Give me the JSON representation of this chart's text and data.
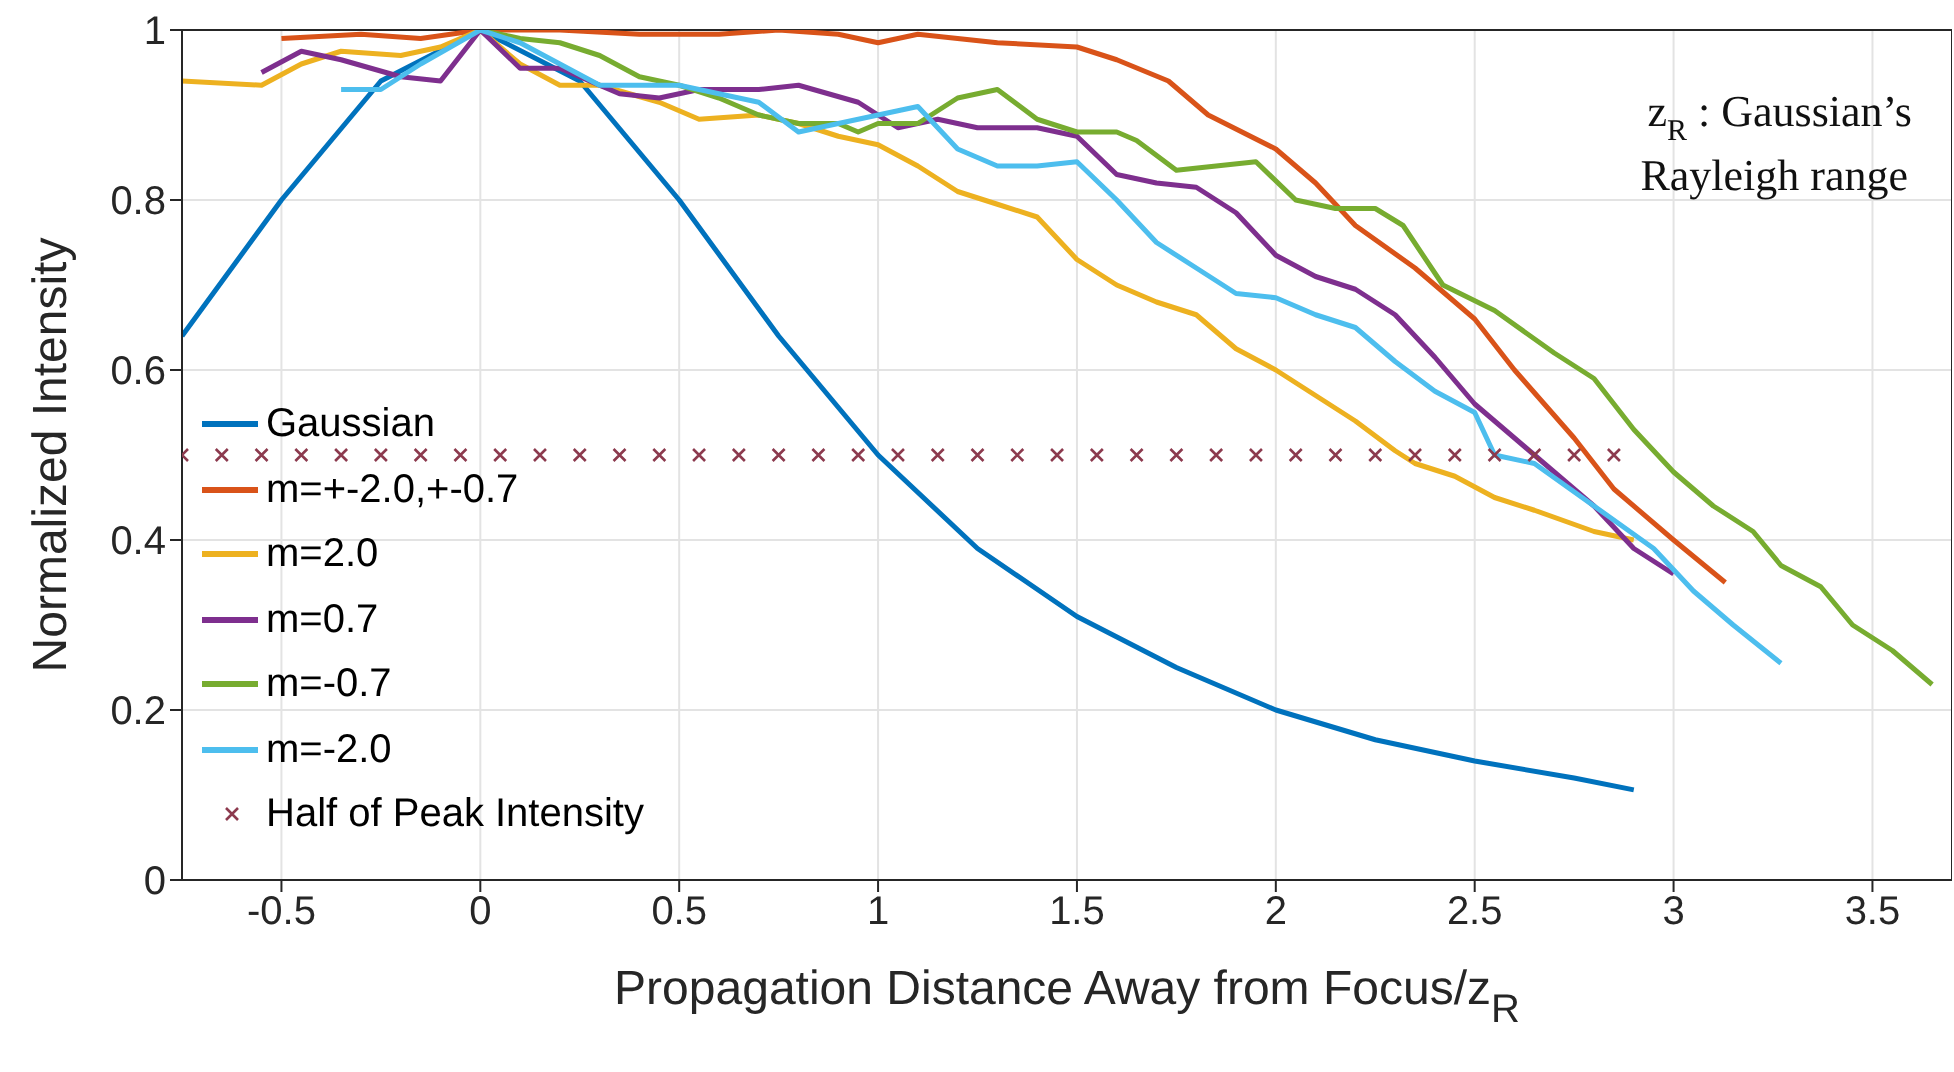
{
  "chart_data": {
    "type": "line",
    "xlabel": "Propagation Distance Away from Focus/z$_{R}$",
    "ylabel": "Normalized Intensity",
    "annotations": [
      "z$_{R}$ : Gaussian’s Rayleigh range"
    ],
    "xlim": [
      -0.75,
      3.7
    ],
    "ylim": [
      0,
      1
    ],
    "xticks": [
      -0.5,
      0,
      0.5,
      1,
      1.5,
      2,
      2.5,
      3,
      3.5
    ],
    "yticks": [
      0,
      0.2,
      0.4,
      0.6,
      0.8,
      1
    ],
    "grid": true,
    "legend": "left",
    "line_style": "solid",
    "marker": "none",
    "series": [
      {
        "name": "Gaussian",
        "color": "#0072bd",
        "x": [
          -0.75,
          -0.5,
          -0.25,
          0,
          0.25,
          0.5,
          0.75,
          1,
          1.25,
          1.5,
          1.75,
          2,
          2.25,
          2.5,
          2.75,
          2.9
        ],
        "values": [
          0.64,
          0.8,
          0.94,
          1,
          0.94,
          0.8,
          0.64,
          0.5,
          0.39,
          0.31,
          0.25,
          0.2,
          0.165,
          0.14,
          0.12,
          0.106
        ]
      },
      {
        "name": "m=+-2.0,+-0.7",
        "color": "#d95319",
        "x": [
          -0.5,
          -0.3,
          -0.15,
          0,
          0.2,
          0.4,
          0.6,
          0.75,
          0.9,
          1.0,
          1.1,
          1.3,
          1.5,
          1.6,
          1.73,
          1.83,
          2.0,
          2.1,
          2.2,
          2.35,
          2.5,
          2.6,
          2.75,
          2.85,
          3.0,
          3.13
        ],
        "values": [
          0.99,
          0.995,
          0.99,
          1,
          1,
          0.995,
          0.995,
          1,
          0.995,
          0.985,
          0.995,
          0.985,
          0.98,
          0.965,
          0.94,
          0.9,
          0.86,
          0.82,
          0.77,
          0.72,
          0.66,
          0.6,
          0.52,
          0.46,
          0.4,
          0.35
        ]
      },
      {
        "name": "m=2.0",
        "color": "#edb120",
        "x": [
          -0.75,
          -0.55,
          -0.45,
          -0.35,
          -0.2,
          -0.1,
          0,
          0.1,
          0.2,
          0.3,
          0.45,
          0.55,
          0.7,
          0.8,
          0.9,
          1.0,
          1.1,
          1.2,
          1.3,
          1.4,
          1.5,
          1.6,
          1.7,
          1.8,
          1.9,
          2.0,
          2.1,
          2.2,
          2.3,
          2.35,
          2.45,
          2.55,
          2.65,
          2.8,
          2.9
        ],
        "values": [
          0.94,
          0.935,
          0.96,
          0.975,
          0.97,
          0.98,
          1,
          0.96,
          0.935,
          0.935,
          0.915,
          0.895,
          0.9,
          0.89,
          0.875,
          0.865,
          0.84,
          0.81,
          0.795,
          0.78,
          0.73,
          0.7,
          0.68,
          0.665,
          0.625,
          0.6,
          0.57,
          0.54,
          0.505,
          0.49,
          0.475,
          0.45,
          0.435,
          0.41,
          0.4
        ]
      },
      {
        "name": "m=0.7",
        "color": "#7e2f8e",
        "x": [
          -0.55,
          -0.45,
          -0.35,
          -0.2,
          -0.1,
          0,
          0.1,
          0.2,
          0.35,
          0.45,
          0.55,
          0.7,
          0.8,
          0.95,
          1.05,
          1.15,
          1.25,
          1.4,
          1.5,
          1.6,
          1.7,
          1.8,
          1.9,
          2.0,
          2.1,
          2.2,
          2.3,
          2.4,
          2.5,
          2.6,
          2.7,
          2.8,
          2.9,
          3.0
        ],
        "values": [
          0.95,
          0.975,
          0.965,
          0.945,
          0.94,
          1,
          0.955,
          0.955,
          0.925,
          0.92,
          0.93,
          0.93,
          0.935,
          0.915,
          0.885,
          0.895,
          0.885,
          0.885,
          0.875,
          0.83,
          0.82,
          0.815,
          0.785,
          0.735,
          0.71,
          0.695,
          0.665,
          0.615,
          0.56,
          0.52,
          0.48,
          0.44,
          0.39,
          0.36
        ]
      },
      {
        "name": "m=-0.7",
        "color": "#77ac30",
        "x": [
          0,
          0.1,
          0.2,
          0.3,
          0.4,
          0.5,
          0.6,
          0.7,
          0.8,
          0.9,
          0.95,
          1.0,
          1.1,
          1.2,
          1.3,
          1.4,
          1.5,
          1.6,
          1.65,
          1.75,
          1.85,
          1.95,
          2.05,
          2.15,
          2.25,
          2.32,
          2.42,
          2.55,
          2.7,
          2.8,
          2.9,
          3.0,
          3.1,
          3.2,
          3.27,
          3.37,
          3.45,
          3.55,
          3.65
        ],
        "values": [
          1,
          0.99,
          0.985,
          0.97,
          0.945,
          0.935,
          0.92,
          0.9,
          0.89,
          0.89,
          0.88,
          0.89,
          0.89,
          0.92,
          0.93,
          0.895,
          0.88,
          0.88,
          0.87,
          0.835,
          0.84,
          0.845,
          0.8,
          0.79,
          0.79,
          0.77,
          0.7,
          0.67,
          0.62,
          0.59,
          0.53,
          0.48,
          0.44,
          0.41,
          0.37,
          0.345,
          0.3,
          0.27,
          0.23
        ]
      },
      {
        "name": "m=-2.0",
        "color": "#4dbeee",
        "x": [
          -0.35,
          -0.25,
          -0.15,
          0,
          0.1,
          0.2,
          0.3,
          0.5,
          0.7,
          0.8,
          0.9,
          1.0,
          1.1,
          1.2,
          1.3,
          1.4,
          1.5,
          1.6,
          1.7,
          1.8,
          1.9,
          2.0,
          2.1,
          2.2,
          2.3,
          2.4,
          2.5,
          2.55,
          2.65,
          2.8,
          2.95,
          3.05,
          3.15,
          3.27
        ],
        "values": [
          0.93,
          0.93,
          0.96,
          1,
          0.985,
          0.96,
          0.935,
          0.935,
          0.915,
          0.88,
          0.89,
          0.9,
          0.91,
          0.86,
          0.84,
          0.84,
          0.845,
          0.8,
          0.75,
          0.72,
          0.69,
          0.685,
          0.665,
          0.65,
          0.61,
          0.575,
          0.55,
          0.5,
          0.49,
          0.44,
          0.39,
          0.34,
          0.3,
          0.255
        ]
      },
      {
        "name": "Half of Peak Intensity",
        "type": "scatter",
        "marker": "cross",
        "color": "#8c3a4e",
        "x": [
          -0.75,
          -0.65,
          -0.55,
          -0.45,
          -0.35,
          -0.25,
          -0.15,
          -0.05,
          0.05,
          0.15,
          0.25,
          0.35,
          0.45,
          0.55,
          0.65,
          0.75,
          0.85,
          0.95,
          1.05,
          1.15,
          1.25,
          1.35,
          1.45,
          1.55,
          1.65,
          1.75,
          1.85,
          1.95,
          2.05,
          2.15,
          2.25,
          2.35,
          2.45,
          2.55,
          2.65,
          2.75,
          2.85
        ],
        "values": [
          0.5,
          0.5,
          0.5,
          0.5,
          0.5,
          0.5,
          0.5,
          0.5,
          0.5,
          0.5,
          0.5,
          0.5,
          0.5,
          0.5,
          0.5,
          0.5,
          0.5,
          0.5,
          0.5,
          0.5,
          0.5,
          0.5,
          0.5,
          0.5,
          0.5,
          0.5,
          0.5,
          0.5,
          0.5,
          0.5,
          0.5,
          0.5,
          0.5,
          0.5,
          0.5,
          0.5,
          0.5
        ]
      }
    ]
  }
}
